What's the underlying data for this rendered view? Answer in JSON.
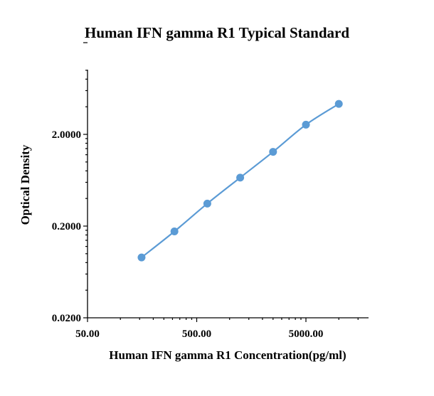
{
  "chart_data": {
    "type": "line",
    "title": "Human IFN gamma R1 Typical Standard",
    "xlabel": "Human IFN gamma R1 Concentration(pg/ml)",
    "ylabel": "Optical Density",
    "x_scale": "log",
    "y_scale": "log",
    "xlim": [
      50,
      15000
    ],
    "ylim": [
      0.02,
      20
    ],
    "x_ticks": [
      "50.00",
      "500.00",
      "5000.00"
    ],
    "y_ticks": [
      "0.0200",
      "0.2000",
      "2.0000"
    ],
    "grid": false,
    "marker": "circle",
    "color": "#5b9bd5",
    "series": [
      {
        "x": [
          156.25,
          312.5,
          625,
          1250,
          2500,
          5000,
          10000
        ],
        "y": [
          0.091,
          0.175,
          0.352,
          0.675,
          1.29,
          2.55,
          4.3
        ]
      }
    ]
  }
}
